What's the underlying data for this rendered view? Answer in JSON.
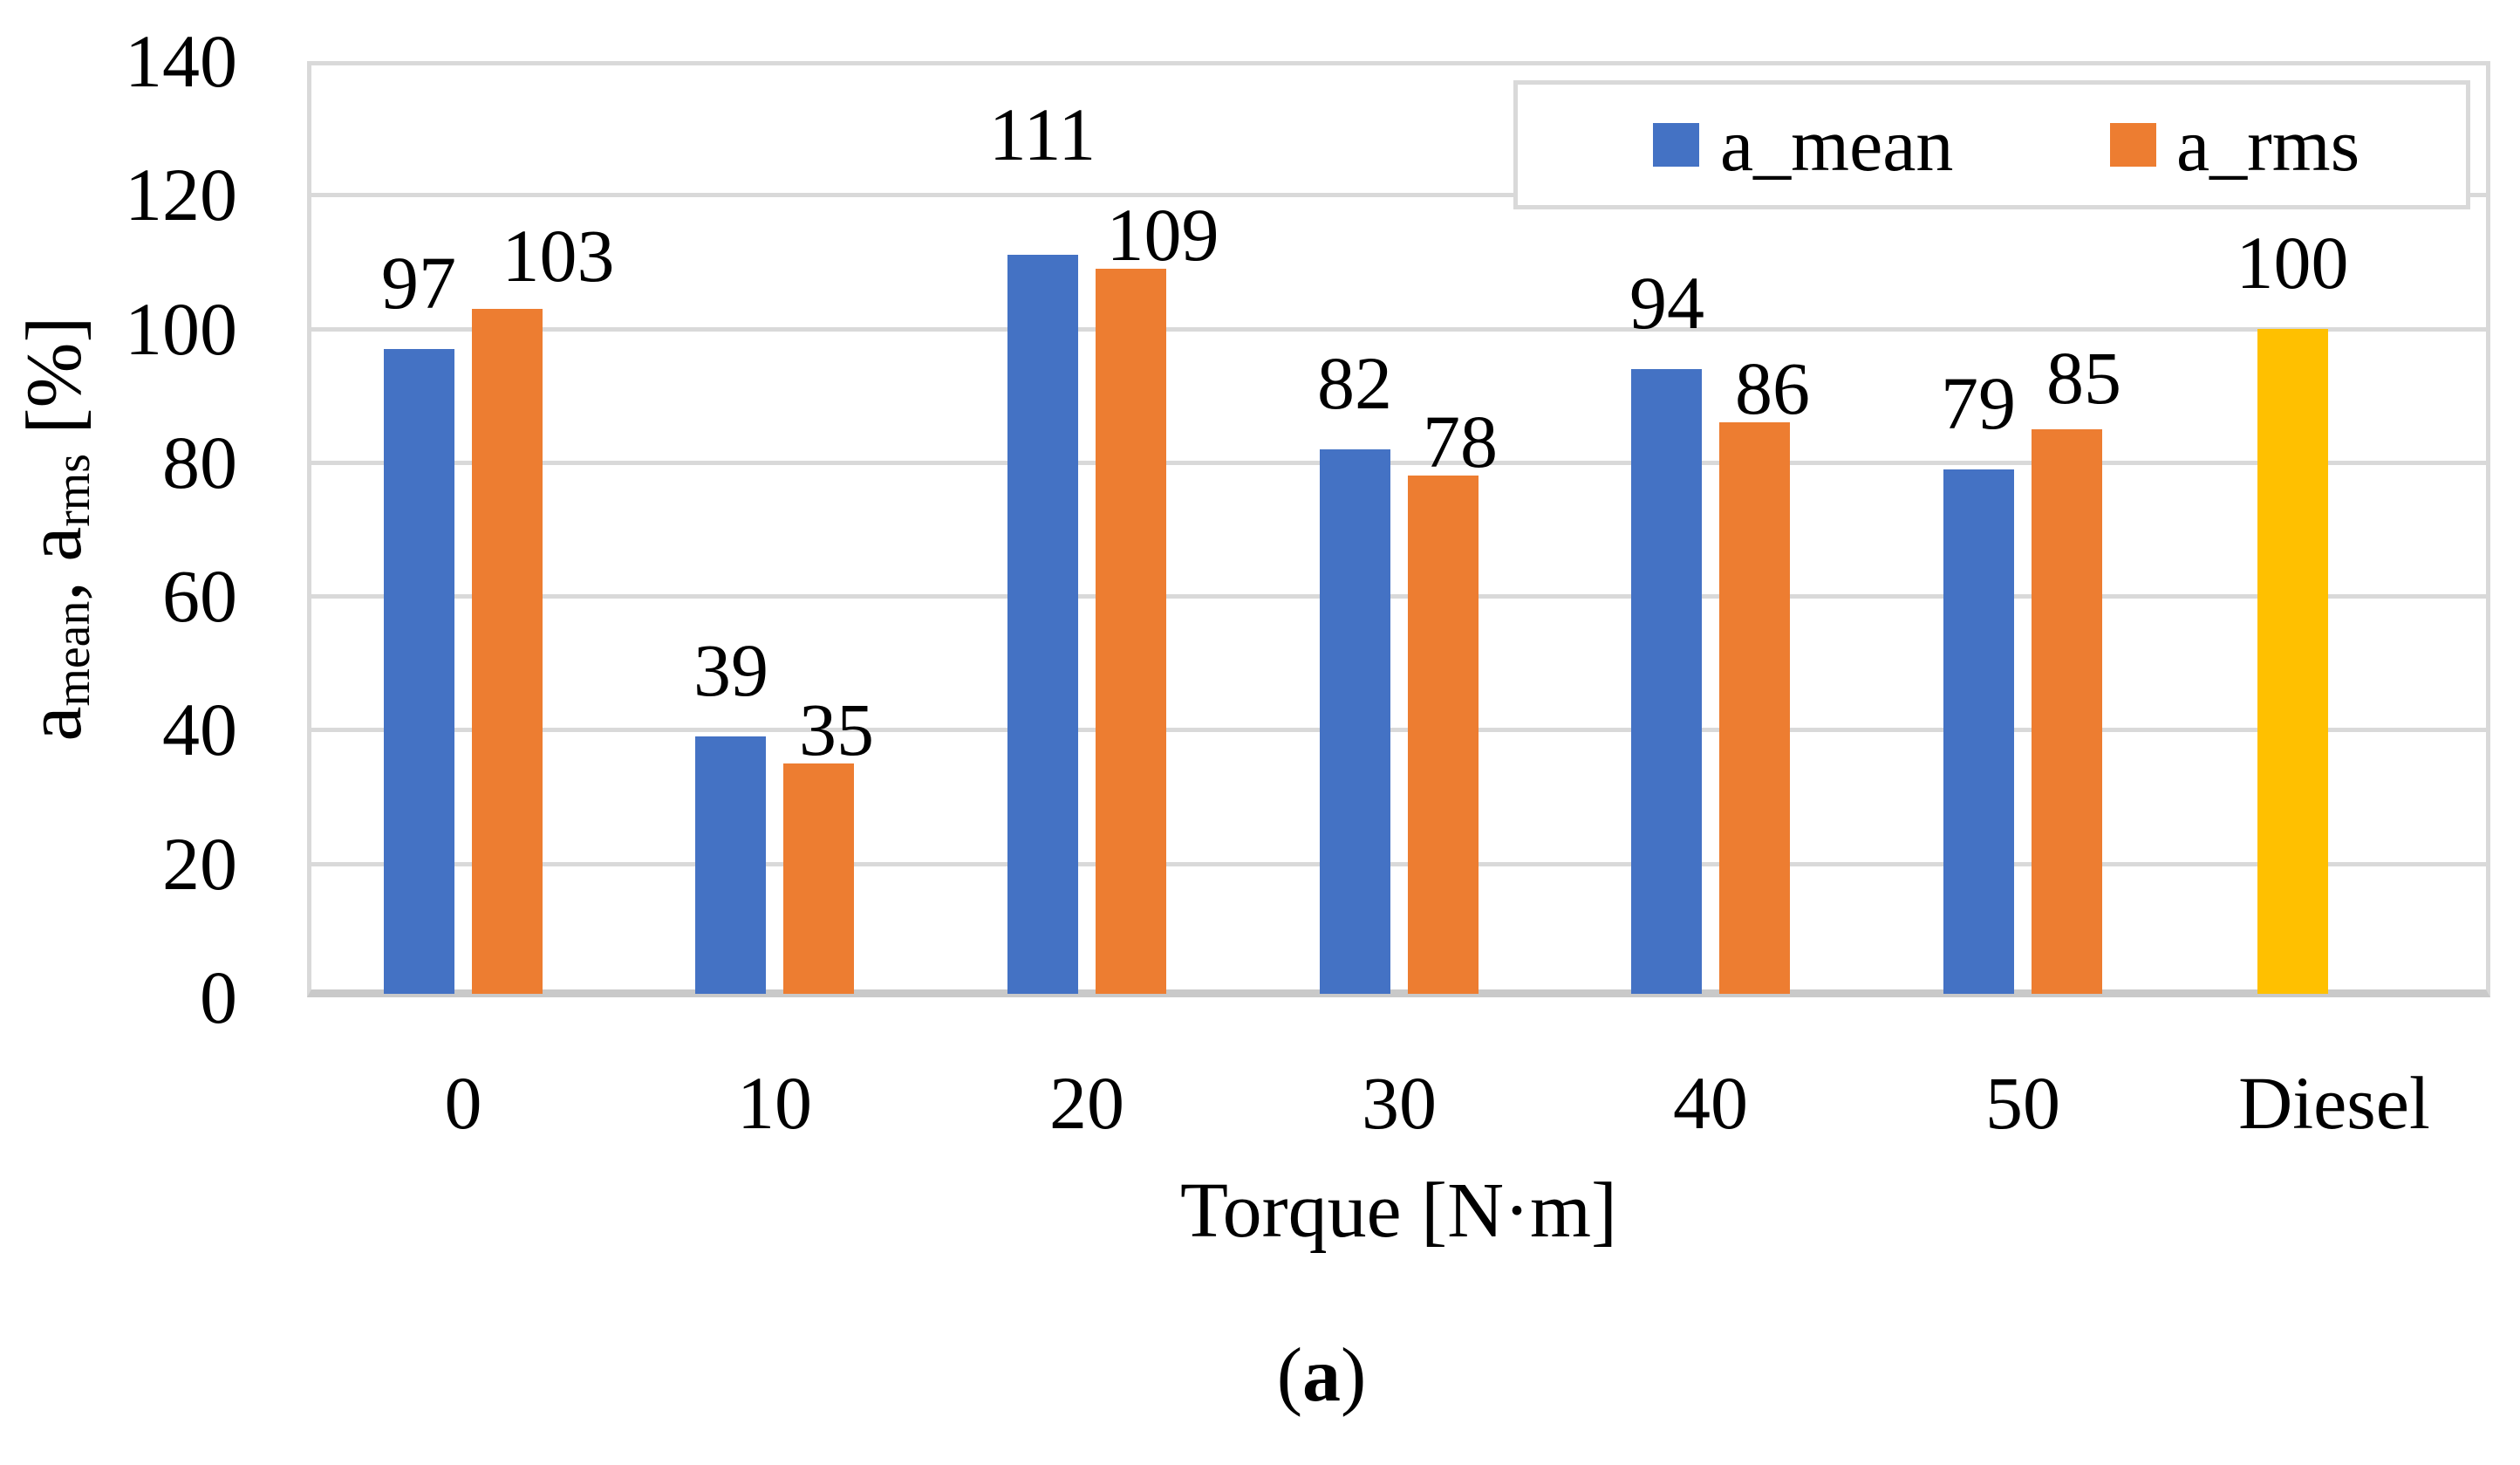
{
  "figure": {
    "caption": {
      "open": "(",
      "letter": "a",
      "close": ")"
    }
  },
  "axes": {
    "x_title": "Torque [N·m]",
    "y_title_parts": {
      "main1": "a",
      "sub1": "mean",
      "main2": ", a",
      "sub2": "rms",
      "main3": " [%]"
    }
  },
  "legend": {
    "items": [
      {
        "label": "a_mean",
        "color": "#4472C4"
      },
      {
        "label": "a_rms",
        "color": "#ED7D31"
      }
    ]
  },
  "chart_data": {
    "type": "bar",
    "title": "",
    "categories": [
      "0",
      "10",
      "20",
      "30",
      "40",
      "50",
      "Diesel"
    ],
    "series": [
      {
        "name": "a_mean",
        "color": "#4472C4",
        "values": [
          97,
          39,
          111,
          82,
          94,
          79,
          null
        ]
      },
      {
        "name": "a_rms",
        "color": "#ED7D31",
        "values": [
          103,
          35,
          109,
          78,
          86,
          85,
          null
        ]
      },
      {
        "name": "Diesel",
        "color": "#FFC000",
        "values": [
          null,
          null,
          null,
          null,
          null,
          null,
          100
        ]
      }
    ],
    "data_labels": true,
    "xlabel": "Torque [N·m]",
    "ylabel": "a_mean, a_rms [%]",
    "ylim": [
      0,
      140
    ],
    "ytick_step": 20,
    "grid": true,
    "legend_position": "top-right",
    "legend_entries": [
      "a_mean",
      "a_rms"
    ],
    "colors": {
      "grid": "#D9D9D9",
      "axis_line": "#C9C9C9",
      "text": "#000000",
      "background": "#FFFFFF"
    },
    "label_offsets": {
      "a_mean": {
        "2": {
          "dx": 0,
          "dy": -62
        }
      },
      "a_rms": {
        "0": {
          "dx": 39,
          "dy": -22
        },
        "2": {
          "dx": 17,
          "dy": 0
        },
        "5": {
          "dx": 0,
          "dy": -20
        }
      }
    }
  }
}
